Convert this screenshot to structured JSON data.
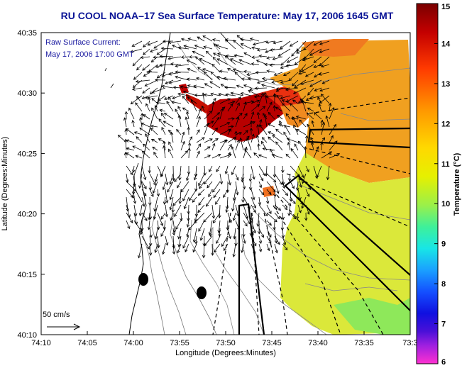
{
  "title": "RU COOL  NOAA–17  Sea Surface Temperature:  May 17, 2006 1645 GMT",
  "annotation": {
    "line1": "Raw Surface Current:",
    "line2": "May 17, 2006 17:00 GMT"
  },
  "scale_label": "50 cm/s",
  "axes": {
    "xlabel": "Longitude (Degrees:Minutes)",
    "ylabel": "Latitude (Degrees:Minutes)",
    "xticks": [
      "74:10",
      "74:05",
      "74:00",
      "73:55",
      "73:50",
      "73:45",
      "73:40",
      "73:35",
      "73:3"
    ],
    "yticks": [
      "40:35",
      "40:30",
      "40:25",
      "40:20",
      "40:15",
      "40:10"
    ]
  },
  "colorbar": {
    "label": "Temperature (°C)",
    "ticks": [
      "15",
      "14",
      "13",
      "12",
      "11",
      "10",
      "9",
      "8",
      "7",
      "6"
    ],
    "min": 6,
    "max": 15
  },
  "colors": {
    "title": "#0a1496",
    "annotation": "#1a1aa0"
  }
}
